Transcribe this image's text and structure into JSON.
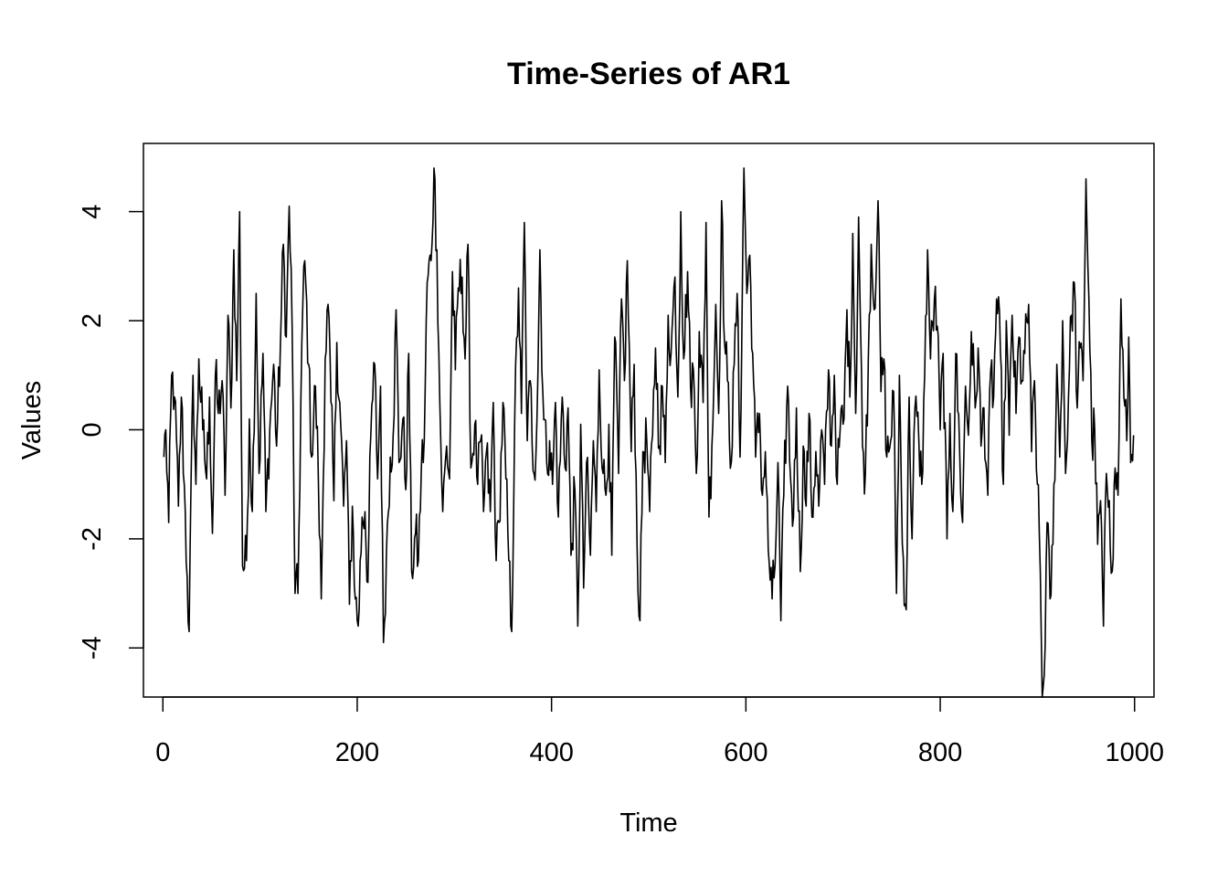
{
  "chart_data": {
    "type": "line",
    "title": "Time-Series of AR1",
    "xlabel": "Time",
    "ylabel": "Values",
    "xlim": [
      -20,
      1020
    ],
    "ylim": [
      -4.9,
      5.25
    ],
    "x_ticks": [
      0,
      200,
      400,
      600,
      800,
      1000
    ],
    "y_ticks": [
      -4,
      -2,
      0,
      2,
      4
    ],
    "grid": false,
    "legend": "none",
    "colors": {
      "line": "#000000",
      "axis": "#000000",
      "background": "#ffffff"
    },
    "series": [
      {
        "anchors": [
          [
            1,
            -0.5
          ],
          [
            3,
            0.0
          ],
          [
            6,
            -1.7
          ],
          [
            9,
            1.0
          ],
          [
            12,
            0.6
          ],
          [
            16,
            -1.4
          ],
          [
            19,
            0.6
          ],
          [
            22,
            -1.0
          ],
          [
            25,
            -2.7
          ],
          [
            27,
            -3.7
          ],
          [
            31,
            1.0
          ],
          [
            34,
            -1.0
          ],
          [
            37,
            1.3
          ],
          [
            41,
            0.0
          ],
          [
            45,
            -0.9
          ],
          [
            48,
            0.6
          ],
          [
            51,
            -1.9
          ],
          [
            54,
            1.0
          ],
          [
            57,
            0.3
          ],
          [
            61,
            0.9
          ],
          [
            64,
            -1.2
          ],
          [
            67,
            2.1
          ],
          [
            70,
            0.4
          ],
          [
            73,
            3.3
          ],
          [
            76,
            0.9
          ],
          [
            79,
            4.0
          ],
          [
            82,
            -2.5
          ],
          [
            86,
            -2.4
          ],
          [
            89,
            0.2
          ],
          [
            92,
            -1.5
          ],
          [
            96,
            2.5
          ],
          [
            99,
            -0.8
          ],
          [
            103,
            1.4
          ],
          [
            106,
            -1.5
          ],
          [
            110,
            0.0
          ],
          [
            114,
            1.2
          ],
          [
            117,
            -0.3
          ],
          [
            121,
            1.6
          ],
          [
            124,
            3.4
          ],
          [
            127,
            1.7
          ],
          [
            130,
            4.1
          ],
          [
            133,
            1.9
          ],
          [
            136,
            -3.0
          ],
          [
            139,
            -3.0
          ],
          [
            143,
            1.6
          ],
          [
            146,
            3.1
          ],
          [
            150,
            1.2
          ],
          [
            153,
            -0.5
          ],
          [
            157,
            0.8
          ],
          [
            160,
            -0.9
          ],
          [
            163,
            -3.1
          ],
          [
            167,
            1.3
          ],
          [
            170,
            2.3
          ],
          [
            173,
            0.5
          ],
          [
            176,
            -1.3
          ],
          [
            179,
            1.6
          ],
          [
            183,
            0.1
          ],
          [
            186,
            -1.4
          ],
          [
            189,
            -0.2
          ],
          [
            192,
            -3.2
          ],
          [
            195,
            -1.4
          ],
          [
            198,
            -3.1
          ],
          [
            201,
            -3.6
          ],
          [
            205,
            -1.6
          ],
          [
            208,
            -1.5
          ],
          [
            211,
            -2.8
          ],
          [
            214,
            -0.1
          ],
          [
            218,
            1.2
          ],
          [
            221,
            -0.9
          ],
          [
            224,
            0.8
          ],
          [
            227,
            -3.9
          ],
          [
            230,
            -2.3
          ],
          [
            234,
            -0.5
          ],
          [
            237,
            -0.1
          ],
          [
            240,
            2.2
          ],
          [
            243,
            -0.6
          ],
          [
            247,
            0.2
          ],
          [
            250,
            -1.1
          ],
          [
            253,
            1.4
          ],
          [
            256,
            -2.6
          ],
          [
            260,
            -1.9
          ],
          [
            263,
            -2.4
          ],
          [
            266,
            -0.7
          ],
          [
            269,
            -0.2
          ],
          [
            272,
            2.7
          ],
          [
            276,
            3.1
          ],
          [
            279,
            4.8
          ],
          [
            282,
            3.3
          ],
          [
            285,
            0.5
          ],
          [
            288,
            -1.5
          ],
          [
            292,
            -0.3
          ],
          [
            295,
            -0.9
          ],
          [
            298,
            2.9
          ],
          [
            301,
            1.1
          ],
          [
            304,
            2.6
          ],
          [
            308,
            2.8
          ],
          [
            311,
            1.3
          ],
          [
            314,
            3.4
          ],
          [
            317,
            -0.7
          ],
          [
            321,
            0.1
          ],
          [
            324,
            -1.0
          ],
          [
            327,
            -0.2
          ],
          [
            330,
            -1.5
          ],
          [
            333,
            -0.4
          ],
          [
            337,
            -1.5
          ],
          [
            340,
            0.5
          ],
          [
            343,
            -2.4
          ],
          [
            346,
            -1.7
          ],
          [
            350,
            0.5
          ],
          [
            353,
            -0.9
          ],
          [
            356,
            -2.4
          ],
          [
            359,
            -3.7
          ],
          [
            362,
            0.1
          ],
          [
            366,
            2.6
          ],
          [
            369,
            0.3
          ],
          [
            372,
            3.8
          ],
          [
            375,
            -0.2
          ],
          [
            378,
            0.9
          ],
          [
            382,
            -0.8
          ],
          [
            385,
            0.2
          ],
          [
            388,
            3.3
          ],
          [
            391,
            0.7
          ],
          [
            395,
            -0.6
          ],
          [
            398,
            -0.2
          ],
          [
            401,
            -1.0
          ],
          [
            404,
            0.5
          ],
          [
            407,
            -1.6
          ],
          [
            411,
            0.6
          ],
          [
            414,
            -0.7
          ],
          [
            417,
            0.4
          ],
          [
            420,
            -2.3
          ],
          [
            424,
            -1.1
          ],
          [
            427,
            -3.6
          ],
          [
            430,
            0.1
          ],
          [
            433,
            -2.9
          ],
          [
            436,
            -0.6
          ],
          [
            440,
            -2.3
          ],
          [
            443,
            -0.2
          ],
          [
            446,
            -1.5
          ],
          [
            449,
            1.1
          ],
          [
            453,
            -0.8
          ],
          [
            456,
            -1.2
          ],
          [
            459,
            0.1
          ],
          [
            462,
            -2.3
          ],
          [
            465,
            1.7
          ],
          [
            469,
            -0.8
          ],
          [
            472,
            2.4
          ],
          [
            475,
            0.9
          ],
          [
            478,
            3.1
          ],
          [
            482,
            -0.4
          ],
          [
            485,
            1.2
          ],
          [
            488,
            -2.1
          ],
          [
            491,
            -3.5
          ],
          [
            494,
            -0.4
          ],
          [
            498,
            -0.2
          ],
          [
            501,
            -1.5
          ],
          [
            504,
            -0.1
          ],
          [
            507,
            1.5
          ],
          [
            511,
            -0.3
          ],
          [
            514,
            0.8
          ],
          [
            517,
            -0.6
          ],
          [
            520,
            2.1
          ],
          [
            523,
            1.4
          ],
          [
            527,
            2.8
          ],
          [
            530,
            0.6
          ],
          [
            533,
            4.0
          ],
          [
            536,
            1.3
          ],
          [
            540,
            2.9
          ],
          [
            543,
            0.8
          ],
          [
            546,
            1.1
          ],
          [
            549,
            -0.8
          ],
          [
            552,
            1.8
          ],
          [
            556,
            0.5
          ],
          [
            559,
            3.8
          ],
          [
            562,
            -1.6
          ],
          [
            565,
            -0.3
          ],
          [
            569,
            2.3
          ],
          [
            572,
            0.3
          ],
          [
            575,
            4.2
          ],
          [
            578,
            1.6
          ],
          [
            581,
            0.9
          ],
          [
            585,
            -0.6
          ],
          [
            588,
            1.2
          ],
          [
            591,
            2.5
          ],
          [
            594,
            -0.5
          ],
          [
            598,
            4.8
          ],
          [
            601,
            2.5
          ],
          [
            604,
            3.2
          ],
          [
            607,
            1.4
          ],
          [
            610,
            -0.5
          ],
          [
            614,
            0.3
          ],
          [
            617,
            -1.2
          ],
          [
            620,
            -0.4
          ],
          [
            623,
            -2.2
          ],
          [
            627,
            -3.1
          ],
          [
            630,
            -2.5
          ],
          [
            633,
            -0.6
          ],
          [
            636,
            -3.5
          ],
          [
            639,
            -1.2
          ],
          [
            643,
            0.8
          ],
          [
            646,
            -0.9
          ],
          [
            649,
            -1.6
          ],
          [
            652,
            0.4
          ],
          [
            656,
            -2.6
          ],
          [
            659,
            -0.3
          ],
          [
            662,
            -1.4
          ],
          [
            665,
            0.3
          ],
          [
            668,
            -1.6
          ],
          [
            672,
            -0.4
          ],
          [
            675,
            -1.4
          ],
          [
            678,
            0.0
          ],
          [
            681,
            -1.0
          ],
          [
            685,
            1.1
          ],
          [
            688,
            -0.3
          ],
          [
            691,
            1.0
          ],
          [
            694,
            -1.0
          ],
          [
            697,
            0.0
          ],
          [
            701,
            0.2
          ],
          [
            704,
            2.2
          ],
          [
            707,
            0.6
          ],
          [
            710,
            3.6
          ],
          [
            713,
            0.3
          ],
          [
            716,
            3.9
          ],
          [
            720,
            -0.3
          ],
          [
            723,
            -0.8
          ],
          [
            726,
            1.3
          ],
          [
            729,
            3.4
          ],
          [
            732,
            2.2
          ],
          [
            736,
            4.2
          ],
          [
            739,
            0.7
          ],
          [
            742,
            1.3
          ],
          [
            745,
            -0.5
          ],
          [
            749,
            -0.2
          ],
          [
            752,
            0.7
          ],
          [
            755,
            -3.0
          ],
          [
            758,
            1.0
          ],
          [
            761,
            -2.1
          ],
          [
            765,
            -3.3
          ],
          [
            768,
            0.6
          ],
          [
            771,
            -2.0
          ],
          [
            774,
            0.4
          ],
          [
            778,
            -0.2
          ],
          [
            781,
            -1.0
          ],
          [
            784,
            1.0
          ],
          [
            787,
            3.3
          ],
          [
            790,
            1.3
          ],
          [
            794,
            2.4
          ],
          [
            797,
            1.9
          ],
          [
            800,
            0.0
          ],
          [
            803,
            1.4
          ],
          [
            807,
            -2.0
          ],
          [
            810,
            0.3
          ],
          [
            813,
            -1.5
          ],
          [
            816,
            1.4
          ],
          [
            820,
            -0.4
          ],
          [
            823,
            -1.7
          ],
          [
            826,
            0.8
          ],
          [
            829,
            -0.1
          ],
          [
            832,
            1.8
          ],
          [
            836,
            0.4
          ],
          [
            839,
            1.5
          ],
          [
            842,
            -0.3
          ],
          [
            845,
            0.4
          ],
          [
            849,
            -1.2
          ],
          [
            852,
            1.1
          ],
          [
            855,
            0.6
          ],
          [
            858,
            2.4
          ],
          [
            862,
            1.4
          ],
          [
            865,
            -1.0
          ],
          [
            868,
            2.0
          ],
          [
            871,
            -0.1
          ],
          [
            874,
            2.1
          ],
          [
            878,
            0.3
          ],
          [
            881,
            1.7
          ],
          [
            884,
            0.9
          ],
          [
            887,
            1.4
          ],
          [
            891,
            2.3
          ],
          [
            894,
            -0.4
          ],
          [
            897,
            0.9
          ],
          [
            900,
            -1.0
          ],
          [
            903,
            -2.6
          ],
          [
            905,
            -4.9
          ],
          [
            907,
            -4.5
          ],
          [
            910,
            -1.7
          ],
          [
            913,
            -3.1
          ],
          [
            916,
            -2.1
          ],
          [
            920,
            1.2
          ],
          [
            923,
            -0.5
          ],
          [
            926,
            2.0
          ],
          [
            929,
            -0.8
          ],
          [
            932,
            0.6
          ],
          [
            935,
            2.1
          ],
          [
            938,
            2.7
          ],
          [
            941,
            0.4
          ],
          [
            944,
            1.5
          ],
          [
            947,
            0.9
          ],
          [
            950,
            4.6
          ],
          [
            953,
            2.4
          ],
          [
            956,
            -0.2
          ],
          [
            959,
            0.0
          ],
          [
            962,
            -2.1
          ],
          [
            965,
            -1.3
          ],
          [
            968,
            -3.6
          ],
          [
            971,
            -0.8
          ],
          [
            974,
            -1.3
          ],
          [
            977,
            -2.6
          ],
          [
            980,
            -0.7
          ],
          [
            983,
            -1.2
          ],
          [
            986,
            2.4
          ],
          [
            989,
            0.6
          ],
          [
            992,
            -0.2
          ],
          [
            994,
            1.7
          ],
          [
            996,
            -0.6
          ],
          [
            999,
            -0.1
          ]
        ]
      }
    ]
  }
}
